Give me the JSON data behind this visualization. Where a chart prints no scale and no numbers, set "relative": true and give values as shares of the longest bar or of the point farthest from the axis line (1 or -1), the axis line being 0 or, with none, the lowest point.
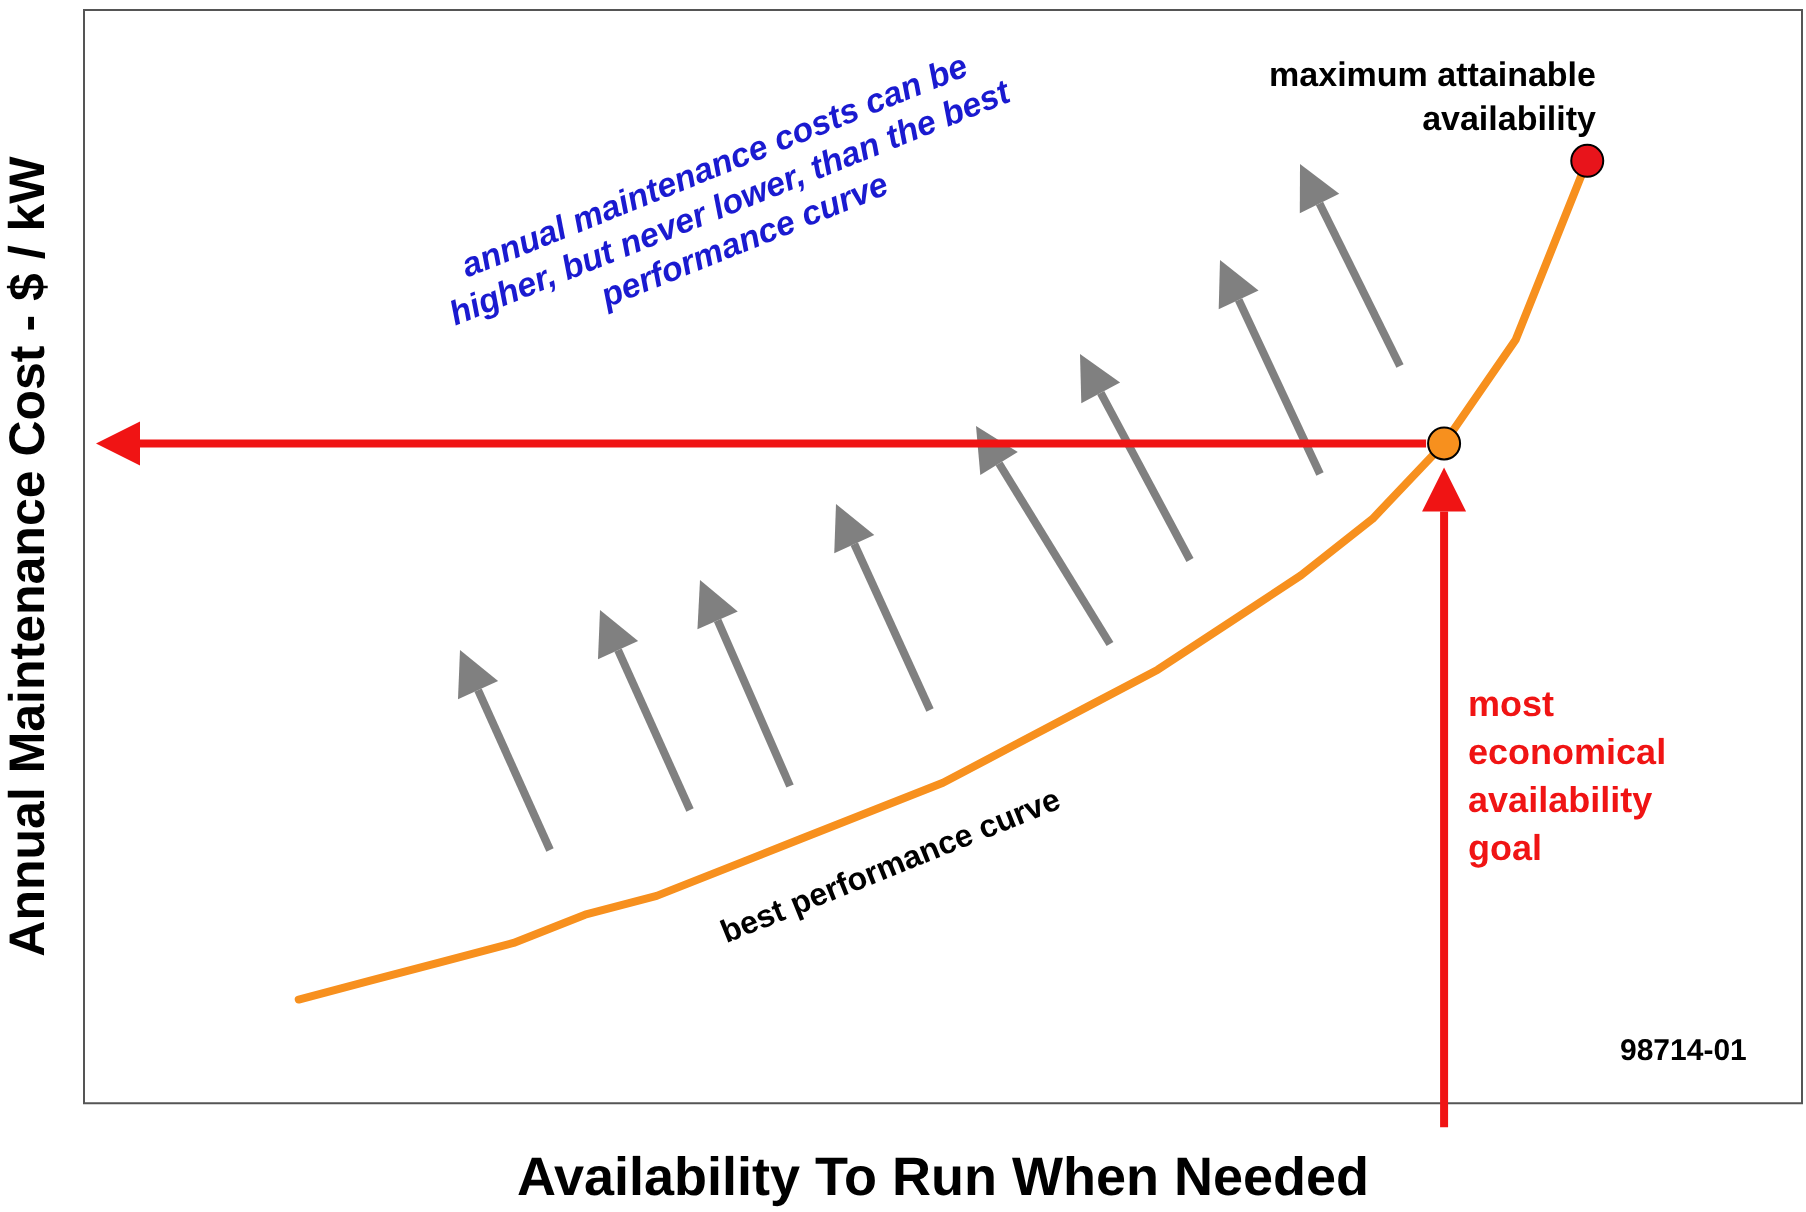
{
  "chart_data": {
    "type": "line",
    "relative": true,
    "xlabel": "Availability To Run When Needed",
    "ylabel": "Annual Maintenance Cost - $ / kW",
    "legend": false,
    "grid": false,
    "categories": [
      null,
      null,
      null,
      null,
      null,
      null,
      null,
      null,
      null,
      null,
      null,
      null,
      null,
      null,
      null,
      null,
      null,
      null,
      null,
      null,
      null,
      null,
      null,
      null,
      null
    ],
    "series": [
      {
        "color": "#f7901e",
        "values": [
          null,
          null,
          null,
          0.11,
          0.13,
          0.15,
          0.17,
          0.2,
          0.22,
          0.25,
          0.28,
          0.31,
          0.34,
          0.38,
          0.42,
          0.46,
          0.51,
          0.56,
          0.62,
          0.7,
          0.81,
          1,
          null,
          null,
          null
        ],
        "colors": [
          null,
          null,
          null,
          null,
          null,
          null,
          null,
          null,
          null,
          null,
          null,
          null,
          null,
          null,
          null,
          null,
          null,
          null,
          null,
          "#f7901e",
          null,
          "#e8141b",
          null,
          null,
          null
        ]
      }
    ],
    "annotations": [
      "annual maintenance costs can be higher, but never lower, than the best performance curve",
      "best performance curve",
      "maximum attainable availability",
      "most economical availability goal",
      "98714-01"
    ]
  }
}
